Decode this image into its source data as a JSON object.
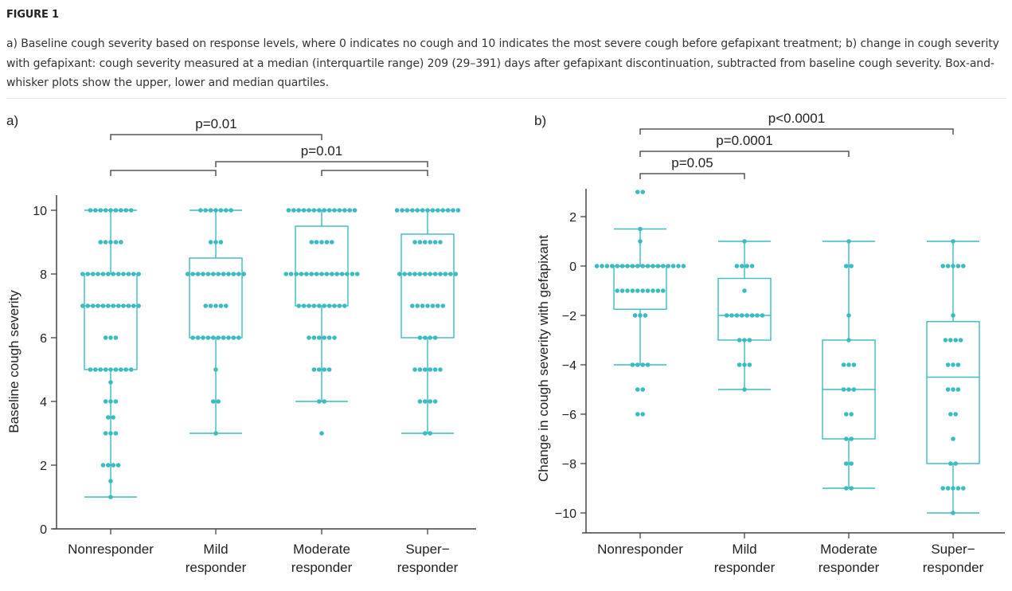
{
  "figure": {
    "title": "FIGURE 1",
    "caption": "a) Baseline cough severity based on response levels, where 0 indicates no cough and 10 indicates the most severe cough before gefapixant treatment; b) change in cough severity with gefapixant: cough severity measured at a median (interquartile range) 209 (29–391) days after gefapixant discontinuation, subtracted from baseline cough severity. Box-and-whisker plots show the upper, lower and median quartiles."
  },
  "colors": {
    "series": "#3bbcc0",
    "axis": "#444444",
    "bracket": "#555555"
  },
  "chart_data": [
    {
      "panel_label": "a)",
      "type": "box-swarm",
      "ylabel": "Baseline cough severity",
      "xlabel": "",
      "ylim": [
        0,
        10.5
      ],
      "yticks": [
        0,
        2,
        4,
        6,
        8,
        10
      ],
      "categories": [
        {
          "line1": "Nonresponder",
          "line2": ""
        },
        {
          "line1": "Mild",
          "line2": "responder"
        },
        {
          "line1": "Moderate",
          "line2": "responder"
        },
        {
          "line1": "Super-",
          "line2": "responder"
        }
      ],
      "boxes": [
        {
          "whisker_low": 1,
          "q1": 5,
          "median": 7,
          "q3": 8,
          "whisker_high": 10
        },
        {
          "whisker_low": 3,
          "q1": 6,
          "median": 8,
          "q3": 8.5,
          "whisker_high": 10
        },
        {
          "whisker_low": 4,
          "q1": 7,
          "median": 8,
          "q3": 9.5,
          "whisker_high": 10
        },
        {
          "whisker_low": 3,
          "q1": 6,
          "median": 8,
          "q3": 9.25,
          "whisker_high": 10
        }
      ],
      "points": [
        [
          [
            10,
            9
          ],
          [
            9,
            5
          ],
          [
            8,
            12
          ],
          [
            7,
            12
          ],
          [
            6,
            3
          ],
          [
            5,
            9
          ],
          [
            4.6,
            1
          ],
          [
            4,
            3
          ],
          [
            3.5,
            2
          ],
          [
            3,
            3
          ],
          [
            2,
            4
          ],
          [
            1.5,
            1
          ],
          [
            1,
            1
          ]
        ],
        [
          [
            10,
            7
          ],
          [
            9,
            3
          ],
          [
            8,
            12
          ],
          [
            7,
            5
          ],
          [
            6,
            10
          ],
          [
            5,
            1
          ],
          [
            4,
            2
          ],
          [
            3,
            1
          ]
        ],
        [
          [
            10,
            14
          ],
          [
            9,
            5
          ],
          [
            8,
            15
          ],
          [
            7,
            10
          ],
          [
            6,
            6
          ],
          [
            5,
            4
          ],
          [
            4,
            2
          ],
          [
            3,
            1
          ]
        ],
        [
          [
            10,
            13
          ],
          [
            9,
            6
          ],
          [
            8,
            12
          ],
          [
            7,
            7
          ],
          [
            6,
            4
          ],
          [
            5,
            6
          ],
          [
            4,
            4
          ],
          [
            3,
            2
          ]
        ]
      ],
      "brackets": [
        {
          "from": 0,
          "to": 2,
          "label": "p=0.01",
          "level": 3
        },
        {
          "from": 1,
          "to": 3,
          "label": "p=0.01",
          "level": 2
        },
        {
          "from": 0,
          "to": 1,
          "label": "",
          "level": 1
        },
        {
          "from": 2,
          "to": 3,
          "label": "",
          "level": 1
        }
      ]
    },
    {
      "panel_label": "b)",
      "type": "box-swarm",
      "ylabel": "Change in cough severity with gefapixant",
      "xlabel": "",
      "ylim": [
        -10.5,
        3
      ],
      "yticks": [
        -10,
        -8,
        -6,
        -4,
        -2,
        0,
        2
      ],
      "categories": [
        {
          "line1": "Nonresponder",
          "line2": ""
        },
        {
          "line1": "Mild",
          "line2": "responder"
        },
        {
          "line1": "Moderate",
          "line2": "responder"
        },
        {
          "line1": "Super-",
          "line2": "responder"
        }
      ],
      "boxes": [
        {
          "whisker_low": -4,
          "q1": -1.75,
          "median": 0,
          "q3": 0,
          "whisker_high": 1.5
        },
        {
          "whisker_low": -5,
          "q1": -3,
          "median": -2,
          "q3": -0.5,
          "whisker_high": 1
        },
        {
          "whisker_low": -9,
          "q1": -7,
          "median": -5,
          "q3": -3,
          "whisker_high": 1
        },
        {
          "whisker_low": -10,
          "q1": -8,
          "median": -4.5,
          "q3": -2.25,
          "whisker_high": 1
        }
      ],
      "points": [
        [
          [
            3,
            2
          ],
          [
            1.5,
            1
          ],
          [
            1,
            1
          ],
          [
            0,
            18
          ],
          [
            -1,
            10
          ],
          [
            -2,
            3
          ],
          [
            -4,
            4
          ],
          [
            -5,
            2
          ],
          [
            -6,
            2
          ]
        ],
        [
          [
            1,
            1
          ],
          [
            0,
            4
          ],
          [
            -1,
            1
          ],
          [
            -2,
            8
          ],
          [
            -3,
            3
          ],
          [
            -4,
            3
          ],
          [
            -5,
            1
          ]
        ],
        [
          [
            1,
            1
          ],
          [
            0,
            2
          ],
          [
            -2,
            1
          ],
          [
            -3,
            1
          ],
          [
            -4,
            3
          ],
          [
            -5,
            3
          ],
          [
            -6,
            2
          ],
          [
            -7,
            2
          ],
          [
            -8,
            2
          ],
          [
            -9,
            2
          ]
        ],
        [
          [
            1,
            1
          ],
          [
            0,
            5
          ],
          [
            -2,
            1
          ],
          [
            -3,
            4
          ],
          [
            -4,
            3
          ],
          [
            -5,
            3
          ],
          [
            -6,
            2
          ],
          [
            -7,
            1
          ],
          [
            -8,
            2
          ],
          [
            -9,
            5
          ],
          [
            -10,
            1
          ]
        ]
      ],
      "brackets": [
        {
          "from": 0,
          "to": 3,
          "label": "p<0.0001",
          "level": 3
        },
        {
          "from": 0,
          "to": 2,
          "label": "p=0.0001",
          "level": 2
        },
        {
          "from": 0,
          "to": 1,
          "label": "p=0.05",
          "level": 1
        }
      ]
    }
  ]
}
